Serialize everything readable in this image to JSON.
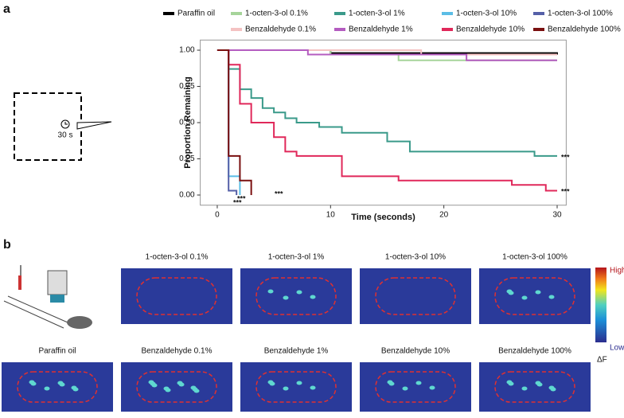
{
  "chart_data": {
    "type": "line",
    "step": "post",
    "xlabel": "Time (seconds)",
    "ylabel": "Proportion Remaining",
    "xlim": [
      -1.5,
      30.8
    ],
    "ylim": [
      -0.07,
      1.07
    ],
    "xticks": [
      0,
      10,
      20,
      30
    ],
    "yticks": [
      {
        "value": 0,
        "label": "0.00"
      },
      0.25,
      {
        "value": 0.5,
        "label": "0.50"
      },
      0.75,
      {
        "value": 1,
        "label": "1.00"
      }
    ],
    "annotations": [
      "***",
      "***",
      "***",
      "***",
      "***"
    ],
    "series": [
      {
        "name": "Paraffin oil",
        "color": "#000000",
        "x": [
          0,
          10,
          30
        ],
        "values": [
          1,
          0.98,
          0.97
        ]
      },
      {
        "name": "1-octen-3-ol 0.1%",
        "color": "#a6d49a",
        "x": [
          0,
          10,
          16,
          30
        ],
        "values": [
          1,
          0.97,
          0.93,
          0.93
        ]
      },
      {
        "name": "1-octen-3-ol 1%",
        "color": "#3a9a8a",
        "x": [
          0,
          1,
          2,
          3,
          4,
          5,
          6,
          7,
          9,
          11,
          15,
          17,
          28,
          30
        ],
        "values": [
          1,
          0.87,
          0.73,
          0.67,
          0.6,
          0.57,
          0.53,
          0.5,
          0.47,
          0.43,
          0.37,
          0.3,
          0.27,
          0.27
        ]
      },
      {
        "name": "1-octen-3-ol 10%",
        "color": "#5bbde6",
        "x": [
          0,
          1,
          2
        ],
        "values": [
          1,
          0.13,
          0
        ]
      },
      {
        "name": "1-octen-3-ol 100%",
        "color": "#5560a8",
        "x": [
          0,
          1,
          1.7
        ],
        "values": [
          1,
          0.03,
          0
        ]
      },
      {
        "name": "Benzaldehyde 0.1%",
        "color": "#f4c2c2",
        "x": [
          0,
          18,
          30
        ],
        "values": [
          1,
          0.97,
          0.97
        ]
      },
      {
        "name": "Benzaldehyde 1%",
        "color": "#b45cc0",
        "x": [
          0,
          8,
          22,
          30
        ],
        "values": [
          1,
          0.97,
          0.93,
          0.93
        ]
      },
      {
        "name": "Benzaldehyde 10%",
        "color": "#e0285a",
        "x": [
          0,
          1,
          2,
          3,
          5,
          6,
          7,
          11,
          16,
          26,
          29,
          30
        ],
        "values": [
          1,
          0.9,
          0.63,
          0.5,
          0.4,
          0.3,
          0.27,
          0.13,
          0.1,
          0.07,
          0.03,
          0.03
        ]
      },
      {
        "name": "Benzaldehyde 100%",
        "color": "#7a1010",
        "x": [
          0,
          1,
          2,
          3
        ],
        "values": [
          1,
          0.27,
          0.1,
          0
        ]
      }
    ]
  },
  "panel_a": {
    "label": "a",
    "timer": "30 s"
  },
  "panel_b": {
    "label": "b",
    "images": [
      "1-octen-3-ol 0.1%",
      "1-octen-3-ol 1%",
      "1-octen-3-ol 10%",
      "1-octen-3-ol 100%",
      "Paraffin oil",
      "Benzaldehyde 0.1%",
      "Benzaldehyde 1%",
      "Benzaldehyde 10%",
      "Benzaldehyde 100%"
    ],
    "colorbar": {
      "high": "High",
      "low": "Low",
      "label": "ΔF"
    }
  }
}
